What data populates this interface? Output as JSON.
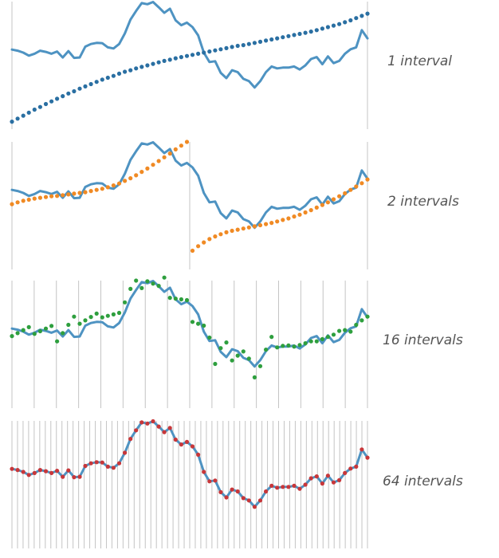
{
  "colors": {
    "signal": "#4e93c2",
    "divider": "#c4c4c4",
    "panel_points": [
      "#2a6fa2",
      "#f08a24",
      "#2e9f3e",
      "#c8373a"
    ]
  },
  "chart_data": [
    {
      "type": "line",
      "label": "1 interval",
      "intervals": 1,
      "xlim": [
        0,
        63
      ],
      "ylim": [
        -1.7,
        1.7
      ],
      "grid": false,
      "series": [
        {
          "role": "signal",
          "values": [
            0.42,
            0.39,
            0.34,
            0.26,
            0.31,
            0.39,
            0.36,
            0.31,
            0.37,
            0.21,
            0.38,
            0.2,
            0.21,
            0.5,
            0.57,
            0.6,
            0.59,
            0.48,
            0.45,
            0.57,
            0.85,
            1.22,
            1.45,
            1.66,
            1.63,
            1.69,
            1.55,
            1.4,
            1.51,
            1.2,
            1.07,
            1.14,
            1.02,
            0.8,
            0.34,
            0.09,
            0.11,
            -0.2,
            -0.34,
            -0.13,
            -0.18,
            -0.36,
            -0.42,
            -0.59,
            -0.42,
            -0.18,
            -0.03,
            -0.08,
            -0.06,
            -0.06,
            -0.03,
            -0.11,
            0.0,
            0.17,
            0.22,
            0.03,
            0.24,
            0.06,
            0.12,
            0.31,
            0.43,
            0.48,
            0.94,
            0.72
          ]
        },
        {
          "role": "approximation",
          "values": [
            -1.5,
            -1.42,
            -1.34,
            -1.26,
            -1.18,
            -1.11,
            -1.03,
            -0.96,
            -0.89,
            -0.82,
            -0.75,
            -0.69,
            -0.62,
            -0.56,
            -0.5,
            -0.44,
            -0.38,
            -0.33,
            -0.28,
            -0.22,
            -0.17,
            -0.13,
            -0.08,
            -0.04,
            0.0,
            0.04,
            0.08,
            0.12,
            0.15,
            0.19,
            0.22,
            0.25,
            0.28,
            0.31,
            0.34,
            0.37,
            0.4,
            0.43,
            0.46,
            0.49,
            0.52,
            0.54,
            0.57,
            0.6,
            0.63,
            0.66,
            0.69,
            0.72,
            0.75,
            0.78,
            0.81,
            0.84,
            0.87,
            0.9,
            0.94,
            0.98,
            1.02,
            1.06,
            1.1,
            1.15,
            1.2,
            1.26,
            1.32,
            1.38
          ]
        }
      ]
    },
    {
      "type": "line",
      "label": "2 intervals",
      "intervals": 2,
      "xlim": [
        0,
        63
      ],
      "ylim": [
        -1.7,
        1.7
      ],
      "grid": false,
      "series": [
        {
          "role": "signal",
          "values": [
            0.42,
            0.39,
            0.34,
            0.26,
            0.31,
            0.39,
            0.36,
            0.31,
            0.37,
            0.21,
            0.38,
            0.2,
            0.21,
            0.5,
            0.57,
            0.6,
            0.59,
            0.48,
            0.45,
            0.57,
            0.85,
            1.22,
            1.45,
            1.66,
            1.63,
            1.69,
            1.55,
            1.4,
            1.51,
            1.2,
            1.07,
            1.14,
            1.02,
            0.8,
            0.34,
            0.09,
            0.11,
            -0.2,
            -0.34,
            -0.13,
            -0.18,
            -0.36,
            -0.42,
            -0.59,
            -0.42,
            -0.18,
            -0.03,
            -0.08,
            -0.06,
            -0.06,
            -0.03,
            -0.11,
            0.0,
            0.17,
            0.22,
            0.03,
            0.24,
            0.06,
            0.12,
            0.31,
            0.43,
            0.48,
            0.94,
            0.72
          ]
        },
        {
          "role": "approximation",
          "values": [
            0.04,
            0.09,
            0.13,
            0.16,
            0.19,
            0.21,
            0.23,
            0.25,
            0.26,
            0.28,
            0.3,
            0.32,
            0.34,
            0.36,
            0.39,
            0.42,
            0.45,
            0.49,
            0.54,
            0.59,
            0.66,
            0.73,
            0.81,
            0.9,
            0.99,
            1.09,
            1.19,
            1.29,
            1.39,
            1.5,
            1.6,
            1.7,
            -1.2,
            -1.08,
            -0.98,
            -0.89,
            -0.82,
            -0.76,
            -0.71,
            -0.67,
            -0.64,
            -0.61,
            -0.58,
            -0.55,
            -0.52,
            -0.49,
            -0.46,
            -0.42,
            -0.38,
            -0.34,
            -0.29,
            -0.24,
            -0.18,
            -0.12,
            -0.05,
            0.02,
            0.09,
            0.17,
            0.25,
            0.33,
            0.42,
            0.51,
            0.6,
            0.7
          ]
        }
      ]
    },
    {
      "type": "line",
      "label": "16 intervals",
      "intervals": 16,
      "xlim": [
        0,
        63
      ],
      "ylim": [
        -1.7,
        1.7
      ],
      "grid": false,
      "series": [
        {
          "role": "signal",
          "values": [
            0.42,
            0.39,
            0.34,
            0.26,
            0.31,
            0.39,
            0.36,
            0.31,
            0.37,
            0.21,
            0.38,
            0.2,
            0.21,
            0.5,
            0.57,
            0.6,
            0.59,
            0.48,
            0.45,
            0.57,
            0.85,
            1.22,
            1.45,
            1.66,
            1.63,
            1.69,
            1.55,
            1.4,
            1.51,
            1.2,
            1.07,
            1.14,
            1.02,
            0.8,
            0.34,
            0.09,
            0.11,
            -0.2,
            -0.34,
            -0.13,
            -0.18,
            -0.36,
            -0.42,
            -0.59,
            -0.42,
            -0.18,
            -0.03,
            -0.08,
            -0.06,
            -0.06,
            -0.03,
            -0.11,
            0.0,
            0.17,
            0.22,
            0.03,
            0.24,
            0.06,
            0.12,
            0.31,
            0.43,
            0.48,
            0.94,
            0.72
          ]
        },
        {
          "role": "approximation",
          "values": [
            0.22,
            0.3,
            0.38,
            0.46,
            0.28,
            0.35,
            0.42,
            0.49,
            0.08,
            0.3,
            0.52,
            0.74,
            0.55,
            0.64,
            0.73,
            0.82,
            0.72,
            0.76,
            0.8,
            0.84,
            1.12,
            1.48,
            1.7,
            1.5,
            1.68,
            1.62,
            1.56,
            1.78,
            1.24,
            1.22,
            1.2,
            1.18,
            0.6,
            0.55,
            0.5,
            0.18,
            -0.52,
            -0.1,
            0.05,
            -0.43,
            -0.3,
            -0.19,
            -0.38,
            -0.88,
            -0.58,
            -0.14,
            0.2,
            -0.08,
            -0.04,
            -0.03,
            -0.06,
            -0.02,
            0.03,
            0.08,
            0.08,
            0.14,
            0.2,
            0.26,
            0.36,
            0.38,
            0.34,
            0.52,
            0.64,
            0.74
          ]
        }
      ]
    },
    {
      "type": "line",
      "label": "64 intervals",
      "intervals": 64,
      "xlim": [
        0,
        63
      ],
      "ylim": [
        -1.7,
        1.7
      ],
      "grid": false,
      "series": [
        {
          "role": "signal",
          "values": [
            0.42,
            0.39,
            0.34,
            0.26,
            0.31,
            0.39,
            0.36,
            0.31,
            0.37,
            0.21,
            0.38,
            0.2,
            0.21,
            0.5,
            0.57,
            0.6,
            0.59,
            0.48,
            0.45,
            0.57,
            0.85,
            1.22,
            1.45,
            1.66,
            1.63,
            1.69,
            1.55,
            1.4,
            1.51,
            1.2,
            1.07,
            1.14,
            1.02,
            0.8,
            0.34,
            0.09,
            0.11,
            -0.2,
            -0.34,
            -0.13,
            -0.18,
            -0.36,
            -0.42,
            -0.59,
            -0.42,
            -0.18,
            -0.03,
            -0.08,
            -0.06,
            -0.06,
            -0.03,
            -0.11,
            0.0,
            0.17,
            0.22,
            0.03,
            0.24,
            0.06,
            0.12,
            0.31,
            0.43,
            0.48,
            0.94,
            0.72
          ]
        },
        {
          "role": "approximation",
          "values": [
            0.42,
            0.39,
            0.34,
            0.26,
            0.31,
            0.39,
            0.36,
            0.31,
            0.37,
            0.21,
            0.38,
            0.2,
            0.21,
            0.5,
            0.57,
            0.6,
            0.59,
            0.48,
            0.45,
            0.57,
            0.85,
            1.22,
            1.45,
            1.66,
            1.63,
            1.69,
            1.55,
            1.4,
            1.51,
            1.2,
            1.07,
            1.14,
            1.02,
            0.8,
            0.34,
            0.09,
            0.11,
            -0.2,
            -0.34,
            -0.13,
            -0.18,
            -0.36,
            -0.42,
            -0.59,
            -0.42,
            -0.18,
            -0.03,
            -0.08,
            -0.06,
            -0.06,
            -0.03,
            -0.11,
            0.0,
            0.17,
            0.22,
            0.03,
            0.24,
            0.06,
            0.12,
            0.31,
            0.43,
            0.48,
            0.94,
            0.72
          ]
        }
      ]
    }
  ]
}
